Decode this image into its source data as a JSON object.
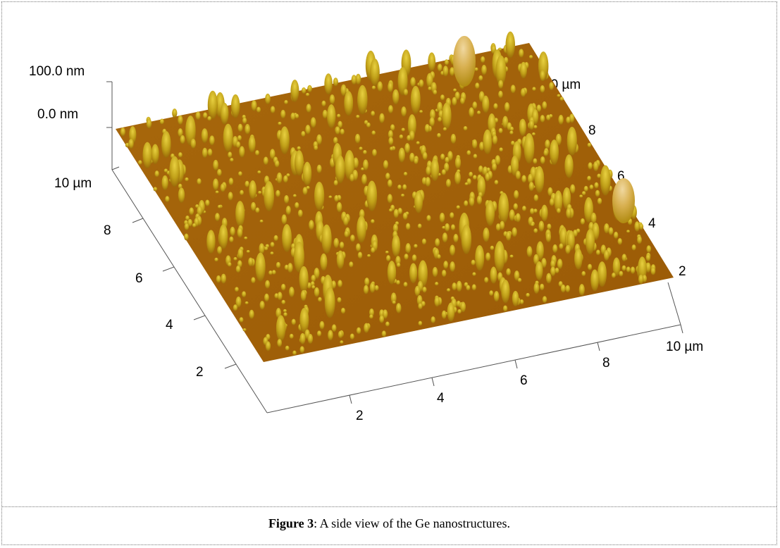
{
  "figure": {
    "z_axis": {
      "labels": [
        "100.0 nm",
        "0.0 nm"
      ]
    },
    "left_axis": {
      "labels": [
        "10 µm",
        "8",
        "6",
        "4",
        "2"
      ]
    },
    "bottom_axis": {
      "labels": [
        "2",
        "4",
        "6",
        "8",
        "10 µm"
      ]
    },
    "right_axis": {
      "labels": [
        "10 µm",
        "8",
        "6",
        "4",
        "2"
      ]
    }
  },
  "caption": {
    "label": "Figure 3",
    "text": ": A side view of the Ge nanostructures."
  }
}
